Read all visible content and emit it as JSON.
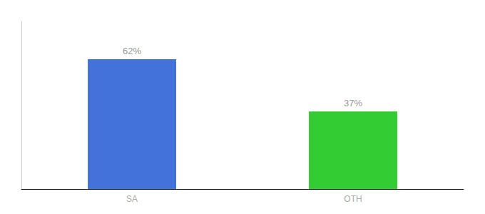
{
  "chart_data": {
    "type": "bar",
    "categories": [
      "SA",
      "OTH"
    ],
    "values": [
      62,
      37
    ],
    "value_labels": [
      "62%",
      "37%"
    ],
    "colors": [
      "#4472db",
      "#33cc33"
    ],
    "ylim": [
      0,
      80
    ],
    "grid": false,
    "data_labels": true,
    "tick_labels": "x"
  }
}
